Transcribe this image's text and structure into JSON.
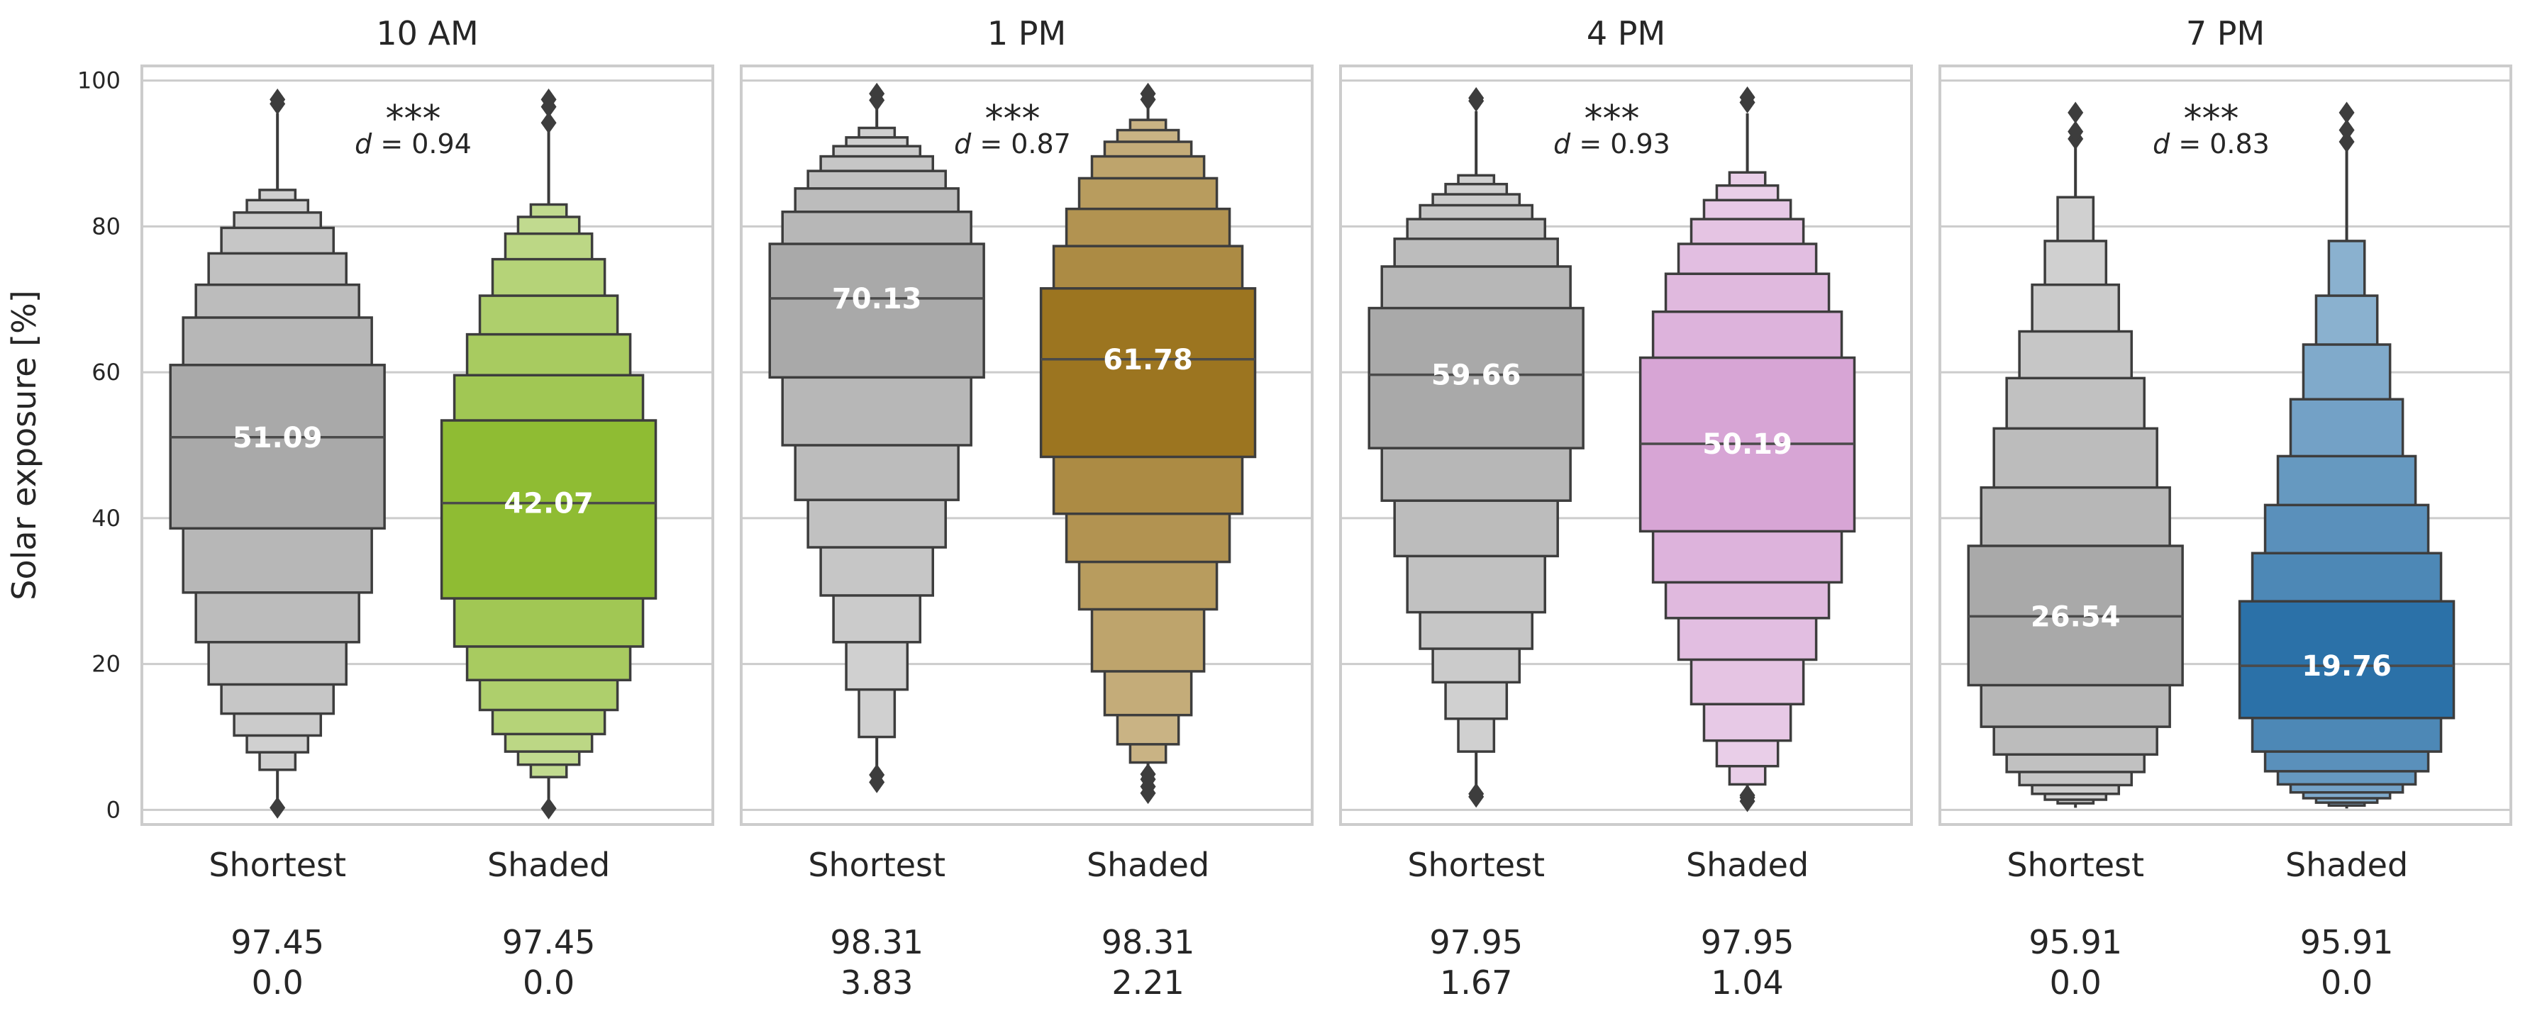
{
  "chart_data": {
    "type": "boxen",
    "ylabel": "Solar exposure [%]",
    "ylim": [
      -2,
      102
    ],
    "yticks": [
      0,
      20,
      40,
      60,
      80,
      100
    ],
    "grid": true,
    "categories": [
      "Shortest",
      "Shaded"
    ],
    "panels": [
      {
        "title": "10 AM",
        "significance": "***",
        "effect_prefix": "d",
        "effect_value": " = 0.94",
        "series": [
          {
            "name": "Shortest",
            "color": "#a9a9a9",
            "median": 51.09,
            "median_label": "51.09",
            "boxes": [
              [
                38.6,
                61.0
              ],
              [
                29.8,
                67.5
              ],
              [
                23.0,
                72.0
              ],
              [
                17.2,
                76.3
              ],
              [
                13.2,
                79.8
              ],
              [
                10.2,
                81.9
              ],
              [
                7.9,
                83.6
              ],
              [
                5.5,
                85.0
              ]
            ],
            "whisker": [
              1.2,
              95.5
            ],
            "outliers": [
              0.3,
              96.8,
              97.4
            ],
            "max": "97.45",
            "min": "0.0"
          },
          {
            "name": "Shaded",
            "color": "#8fbc33",
            "median": 42.07,
            "median_label": "42.07",
            "boxes": [
              [
                29.0,
                53.4
              ],
              [
                22.4,
                59.6
              ],
              [
                17.8,
                65.2
              ],
              [
                13.7,
                70.5
              ],
              [
                10.4,
                75.5
              ],
              [
                8.0,
                79.0
              ],
              [
                6.2,
                81.3
              ],
              [
                4.5,
                83.0
              ]
            ],
            "whisker": [
              1.0,
              93.5
            ],
            "outliers": [
              0.2,
              94.2,
              96.4,
              97.4
            ],
            "max": "97.45",
            "min": "0.0"
          }
        ]
      },
      {
        "title": "1 PM",
        "significance": "***",
        "effect_prefix": "d",
        "effect_value": " = 0.87",
        "series": [
          {
            "name": "Shortest",
            "color": "#a9a9a9",
            "median": 70.13,
            "median_label": "70.13",
            "boxes": [
              [
                59.3,
                77.6
              ],
              [
                50.0,
                82.0
              ],
              [
                42.5,
                85.2
              ],
              [
                36.0,
                87.6
              ],
              [
                29.4,
                89.6
              ],
              [
                23.0,
                91.0
              ],
              [
                16.5,
                92.2
              ],
              [
                10.0,
                93.5
              ]
            ],
            "whisker": [
              5.5,
              96.5
            ],
            "outliers": [
              3.8,
              4.8,
              97.3,
              98.2
            ],
            "max": "98.31",
            "min": "3.83"
          },
          {
            "name": "Shaded",
            "color": "#9c7520",
            "median": 61.78,
            "median_label": "61.78",
            "boxes": [
              [
                48.4,
                71.5
              ],
              [
                40.6,
                77.3
              ],
              [
                34.0,
                82.4
              ],
              [
                27.5,
                86.6
              ],
              [
                19.0,
                89.6
              ],
              [
                13.0,
                91.6
              ],
              [
                9.0,
                93.2
              ],
              [
                6.5,
                94.6
              ]
            ],
            "whisker": [
              5.0,
              96.5
            ],
            "outliers": [
              2.3,
              3.2,
              4.2,
              4.9,
              97.4,
              98.2
            ],
            "max": "98.31",
            "min": "2.21"
          }
        ]
      },
      {
        "title": "4 PM",
        "significance": "***",
        "effect_prefix": "d",
        "effect_value": " = 0.93",
        "series": [
          {
            "name": "Shortest",
            "color": "#a9a9a9",
            "median": 59.66,
            "median_label": "59.66",
            "boxes": [
              [
                49.6,
                68.8
              ],
              [
                42.4,
                74.5
              ],
              [
                34.8,
                78.3
              ],
              [
                27.1,
                81.0
              ],
              [
                22.1,
                82.9
              ],
              [
                17.5,
                84.4
              ],
              [
                12.5,
                85.8
              ],
              [
                8.0,
                87.0
              ]
            ],
            "whisker": [
              2.5,
              95.8
            ],
            "outliers": [
              1.8,
              2.2,
              97.2,
              97.6
            ],
            "max": "97.95",
            "min": "1.67"
          },
          {
            "name": "Shaded",
            "color": "#d7a5d5",
            "median": 50.19,
            "median_label": "50.19",
            "boxes": [
              [
                38.2,
                62.0
              ],
              [
                31.2,
                68.3
              ],
              [
                26.3,
                73.5
              ],
              [
                20.6,
                77.6
              ],
              [
                14.5,
                81.0
              ],
              [
                9.5,
                83.6
              ],
              [
                6.0,
                85.6
              ],
              [
                3.5,
                87.4
              ]
            ],
            "whisker": [
              1.5,
              95.5
            ],
            "outliers": [
              1.2,
              1.7,
              2.0,
              97.0,
              97.7
            ],
            "max": "97.95",
            "min": "1.04"
          }
        ]
      },
      {
        "title": "7 PM",
        "significance": "***",
        "effect_prefix": "d",
        "effect_value": " = 0.83",
        "series": [
          {
            "name": "Shortest",
            "color": "#a9a9a9",
            "median": 26.54,
            "median_label": "26.54",
            "boxes": [
              [
                17.1,
                36.2
              ],
              [
                11.4,
                44.2
              ],
              [
                7.6,
                52.3
              ],
              [
                5.2,
                59.2
              ],
              [
                3.4,
                65.6
              ],
              [
                2.2,
                72.0
              ],
              [
                1.4,
                78.0
              ],
              [
                0.9,
                84.0
              ]
            ],
            "whisker": [
              0.3,
              91.0
            ],
            "outliers": [
              92.0,
              93.0,
              95.6
            ],
            "max": "95.91",
            "min": "0.0"
          },
          {
            "name": "Shaded",
            "color": "#2b71a8",
            "median": 19.76,
            "median_label": "19.76",
            "boxes": [
              [
                12.6,
                28.6
              ],
              [
                8.0,
                35.2
              ],
              [
                5.3,
                41.8
              ],
              [
                3.5,
                48.5
              ],
              [
                2.4,
                56.3
              ],
              [
                1.6,
                63.8
              ],
              [
                1.0,
                70.5
              ],
              [
                0.6,
                78.0
              ]
            ],
            "whisker": [
              0.2,
              91.0
            ],
            "outliers": [
              91.6,
              93.2,
              95.6
            ],
            "max": "95.91",
            "min": "0.0"
          }
        ]
      }
    ]
  }
}
